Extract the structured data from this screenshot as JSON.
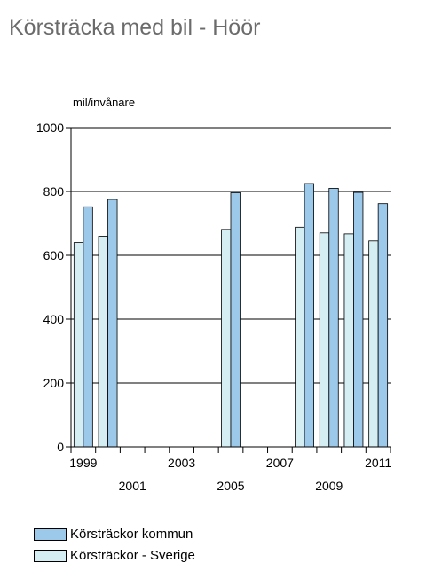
{
  "title": "Körsträcka med bil - Höör",
  "colors": {
    "kommun": "#9cc8ea",
    "sverige": "#d4eef4",
    "stroke": "#000000"
  },
  "chart_data": {
    "type": "bar",
    "ylabel": "mil/invånare",
    "ylim": [
      0,
      1000
    ],
    "yticks": [
      0,
      200,
      400,
      600,
      800,
      1000
    ],
    "grid": true,
    "legend_position": "bottom-left",
    "categories": [
      "1999",
      "2000",
      "2001",
      "2002",
      "2003",
      "2004",
      "2005",
      "2006",
      "2007",
      "2008",
      "2009",
      "2010",
      "2011"
    ],
    "xtick_labels_top": [
      "1999",
      "2003",
      "2007",
      "2011"
    ],
    "xtick_labels_bottom": [
      "2001",
      "2005",
      "2009"
    ],
    "series": [
      {
        "name": "Körsträckor kommun",
        "color": "#9cc8ea",
        "values": [
          752,
          775,
          null,
          null,
          null,
          null,
          796,
          null,
          null,
          825,
          810,
          797,
          762
        ]
      },
      {
        "name": "Körsträckor - Sverige",
        "color": "#d4eef4",
        "values": [
          640,
          660,
          null,
          null,
          null,
          null,
          681,
          null,
          null,
          688,
          670,
          667,
          645
        ]
      }
    ]
  }
}
